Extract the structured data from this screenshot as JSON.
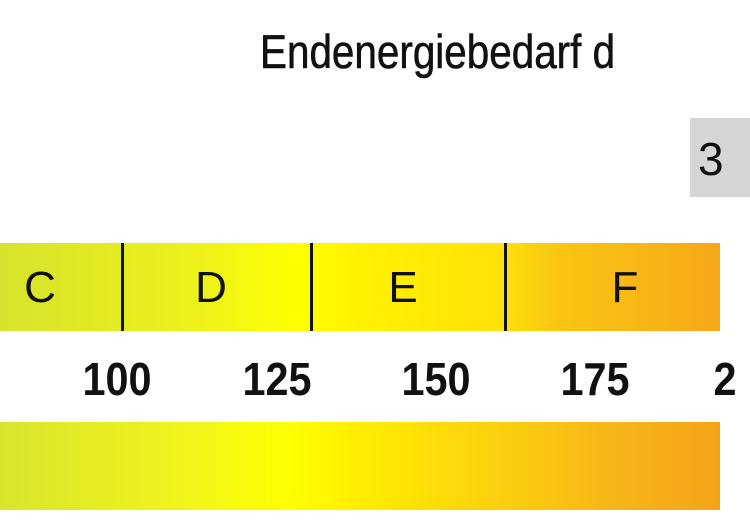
{
  "chart_data": {
    "type": "bar",
    "title": "Endenergiebedarf d",
    "value_label": "3",
    "classes": [
      "C",
      "D",
      "E",
      "F"
    ],
    "ticks": [
      "100",
      "125",
      "150",
      "175",
      "2"
    ],
    "colors": {
      "C": "#d5e32c",
      "D": "#ffff00",
      "E": "#ffe10a",
      "F": "#f6a818"
    }
  }
}
